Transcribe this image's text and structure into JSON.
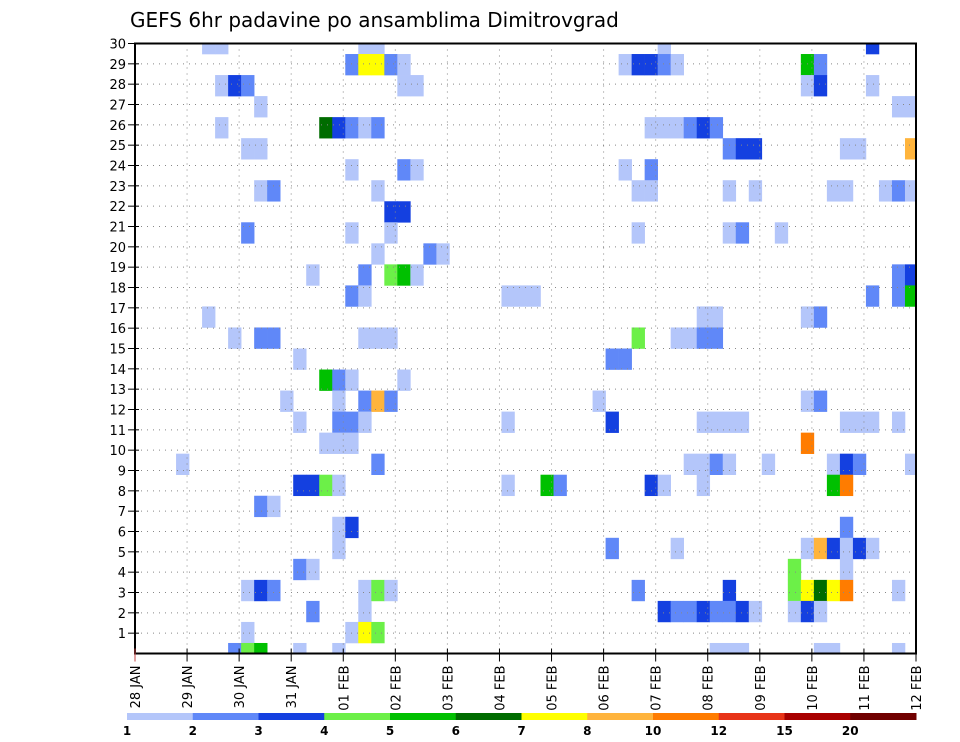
{
  "chart_data": {
    "type": "heatmap",
    "title": "GEFS 6hr padavine po ansamblima Dimitrovgrad",
    "xlabel": "",
    "ylabel": "",
    "x_ticks": [
      "28 JAN",
      "29 JAN",
      "30 JAN",
      "31 JAN",
      "01 FEB",
      "02 FEB",
      "03 FEB",
      "04 FEB",
      "05 FEB",
      "06 FEB",
      "07 FEB",
      "08 FEB",
      "09 FEB",
      "10 FEB",
      "11 FEB",
      "12 FEB"
    ],
    "y_ticks": [
      "1",
      "2",
      "3",
      "4",
      "5",
      "6",
      "7",
      "8",
      "9",
      "10",
      "11",
      "12",
      "13",
      "14",
      "15",
      "16",
      "17",
      "18",
      "19",
      "20",
      "21",
      "22",
      "23",
      "24",
      "25",
      "26",
      "27",
      "28",
      "29",
      "30"
    ],
    "ylim": [
      0,
      30
    ],
    "time_steps_per_day": 4,
    "n_time_steps": 60,
    "n_members": 30,
    "grid": true,
    "legend": {
      "placement": "bottom",
      "labels": [
        "1",
        "2",
        "3",
        "4",
        "5",
        "6",
        "7",
        "8",
        "10",
        "12",
        "15",
        "20"
      ],
      "colors": [
        "#b4c6fa",
        "#6088f8",
        "#1440e0",
        "#6cf048",
        "#00c000",
        "#006c00",
        "#ffff00",
        "#ffb43c",
        "#ff7c00",
        "#e83418",
        "#a80000",
        "#700000"
      ]
    },
    "cells_format": [
      "time_step_index",
      "member",
      "legend_bin_index"
    ],
    "cells": [
      [
        5,
        30,
        0
      ],
      [
        6,
        30,
        0
      ],
      [
        17,
        30,
        0
      ],
      [
        18,
        30,
        0
      ],
      [
        40,
        30,
        0
      ],
      [
        56,
        30,
        2
      ],
      [
        16,
        29,
        1
      ],
      [
        17,
        29,
        6
      ],
      [
        18,
        29,
        6
      ],
      [
        19,
        29,
        1
      ],
      [
        20,
        29,
        0
      ],
      [
        37,
        29,
        0
      ],
      [
        38,
        29,
        2
      ],
      [
        39,
        29,
        2
      ],
      [
        40,
        29,
        1
      ],
      [
        41,
        29,
        0
      ],
      [
        51,
        29,
        4
      ],
      [
        52,
        29,
        1
      ],
      [
        6,
        28,
        0
      ],
      [
        7,
        28,
        2
      ],
      [
        8,
        28,
        1
      ],
      [
        20,
        28,
        0
      ],
      [
        21,
        28,
        0
      ],
      [
        51,
        28,
        0
      ],
      [
        52,
        28,
        2
      ],
      [
        56,
        28,
        0
      ],
      [
        9,
        27,
        0
      ],
      [
        58,
        27,
        0
      ],
      [
        59,
        27,
        0
      ],
      [
        6,
        26,
        0
      ],
      [
        14,
        26,
        5
      ],
      [
        15,
        26,
        2
      ],
      [
        16,
        26,
        1
      ],
      [
        17,
        26,
        0
      ],
      [
        18,
        26,
        1
      ],
      [
        39,
        26,
        0
      ],
      [
        40,
        26,
        0
      ],
      [
        41,
        26,
        0
      ],
      [
        42,
        26,
        1
      ],
      [
        43,
        26,
        2
      ],
      [
        44,
        26,
        1
      ],
      [
        8,
        25,
        0
      ],
      [
        9,
        25,
        0
      ],
      [
        45,
        25,
        1
      ],
      [
        46,
        25,
        2
      ],
      [
        47,
        25,
        2
      ],
      [
        54,
        25,
        0
      ],
      [
        55,
        25,
        0
      ],
      [
        59,
        25,
        7
      ],
      [
        16,
        24,
        0
      ],
      [
        20,
        24,
        1
      ],
      [
        21,
        24,
        0
      ],
      [
        37,
        24,
        0
      ],
      [
        39,
        24,
        1
      ],
      [
        9,
        23,
        0
      ],
      [
        10,
        23,
        1
      ],
      [
        18,
        23,
        0
      ],
      [
        38,
        23,
        0
      ],
      [
        39,
        23,
        0
      ],
      [
        45,
        23,
        0
      ],
      [
        47,
        23,
        0
      ],
      [
        53,
        23,
        0
      ],
      [
        54,
        23,
        0
      ],
      [
        57,
        23,
        0
      ],
      [
        58,
        23,
        1
      ],
      [
        59,
        23,
        0
      ],
      [
        19,
        22,
        2
      ],
      [
        20,
        22,
        2
      ],
      [
        8,
        21,
        1
      ],
      [
        16,
        21,
        0
      ],
      [
        19,
        21,
        0
      ],
      [
        38,
        21,
        0
      ],
      [
        45,
        21,
        0
      ],
      [
        46,
        21,
        1
      ],
      [
        49,
        21,
        0
      ],
      [
        18,
        20,
        0
      ],
      [
        22,
        20,
        1
      ],
      [
        23,
        20,
        0
      ],
      [
        13,
        19,
        0
      ],
      [
        17,
        19,
        1
      ],
      [
        19,
        19,
        3
      ],
      [
        20,
        19,
        4
      ],
      [
        21,
        19,
        0
      ],
      [
        58,
        19,
        1
      ],
      [
        59,
        19,
        2
      ],
      [
        16,
        18,
        1
      ],
      [
        17,
        18,
        0
      ],
      [
        28,
        18,
        0
      ],
      [
        29,
        18,
        0
      ],
      [
        30,
        18,
        0
      ],
      [
        56,
        18,
        1
      ],
      [
        58,
        18,
        1
      ],
      [
        59,
        18,
        4
      ],
      [
        5,
        17,
        0
      ],
      [
        43,
        17,
        0
      ],
      [
        44,
        17,
        0
      ],
      [
        51,
        17,
        0
      ],
      [
        52,
        17,
        1
      ],
      [
        7,
        16,
        0
      ],
      [
        9,
        16,
        1
      ],
      [
        10,
        16,
        1
      ],
      [
        17,
        16,
        0
      ],
      [
        18,
        16,
        0
      ],
      [
        19,
        16,
        0
      ],
      [
        38,
        16,
        3
      ],
      [
        41,
        16,
        0
      ],
      [
        42,
        16,
        0
      ],
      [
        43,
        16,
        1
      ],
      [
        44,
        16,
        1
      ],
      [
        12,
        15,
        0
      ],
      [
        36,
        15,
        1
      ],
      [
        37,
        15,
        1
      ],
      [
        14,
        14,
        4
      ],
      [
        15,
        14,
        1
      ],
      [
        16,
        14,
        0
      ],
      [
        20,
        14,
        0
      ],
      [
        11,
        13,
        0
      ],
      [
        15,
        13,
        0
      ],
      [
        17,
        13,
        1
      ],
      [
        18,
        13,
        7
      ],
      [
        19,
        13,
        1
      ],
      [
        35,
        13,
        0
      ],
      [
        51,
        13,
        0
      ],
      [
        52,
        13,
        1
      ],
      [
        12,
        12,
        0
      ],
      [
        15,
        12,
        1
      ],
      [
        16,
        12,
        1
      ],
      [
        17,
        12,
        0
      ],
      [
        28,
        12,
        0
      ],
      [
        36,
        12,
        2
      ],
      [
        43,
        12,
        0
      ],
      [
        44,
        12,
        0
      ],
      [
        45,
        12,
        0
      ],
      [
        46,
        12,
        0
      ],
      [
        54,
        12,
        0
      ],
      [
        55,
        12,
        0
      ],
      [
        56,
        12,
        0
      ],
      [
        58,
        12,
        0
      ],
      [
        14,
        11,
        0
      ],
      [
        15,
        11,
        0
      ],
      [
        16,
        11,
        0
      ],
      [
        51,
        11,
        8
      ],
      [
        3,
        10,
        0
      ],
      [
        18,
        10,
        1
      ],
      [
        42,
        10,
        0
      ],
      [
        43,
        10,
        0
      ],
      [
        44,
        10,
        1
      ],
      [
        45,
        10,
        0
      ],
      [
        48,
        10,
        0
      ],
      [
        53,
        10,
        0
      ],
      [
        54,
        10,
        2
      ],
      [
        55,
        10,
        1
      ],
      [
        59,
        10,
        0
      ],
      [
        12,
        9,
        2
      ],
      [
        13,
        9,
        2
      ],
      [
        14,
        9,
        3
      ],
      [
        15,
        9,
        0
      ],
      [
        28,
        9,
        0
      ],
      [
        31,
        9,
        4
      ],
      [
        32,
        9,
        1
      ],
      [
        39,
        9,
        2
      ],
      [
        40,
        9,
        0
      ],
      [
        43,
        9,
        0
      ],
      [
        53,
        9,
        4
      ],
      [
        54,
        9,
        8
      ],
      [
        9,
        8,
        1
      ],
      [
        10,
        8,
        0
      ],
      [
        15,
        7,
        0
      ],
      [
        16,
        7,
        2
      ],
      [
        54,
        7,
        1
      ],
      [
        15,
        6,
        0
      ],
      [
        36,
        6,
        1
      ],
      [
        41,
        6,
        0
      ],
      [
        51,
        6,
        0
      ],
      [
        52,
        6,
        7
      ],
      [
        53,
        6,
        2
      ],
      [
        54,
        6,
        0
      ],
      [
        55,
        6,
        2
      ],
      [
        56,
        6,
        0
      ],
      [
        12,
        5,
        1
      ],
      [
        13,
        5,
        0
      ],
      [
        50,
        5,
        3
      ],
      [
        54,
        5,
        0
      ],
      [
        8,
        4,
        0
      ],
      [
        9,
        4,
        2
      ],
      [
        10,
        4,
        1
      ],
      [
        17,
        4,
        0
      ],
      [
        18,
        4,
        3
      ],
      [
        19,
        4,
        0
      ],
      [
        38,
        4,
        1
      ],
      [
        45,
        4,
        2
      ],
      [
        50,
        4,
        3
      ],
      [
        51,
        4,
        6
      ],
      [
        52,
        4,
        5
      ],
      [
        53,
        4,
        6
      ],
      [
        54,
        4,
        8
      ],
      [
        58,
        4,
        0
      ],
      [
        13,
        3,
        1
      ],
      [
        17,
        3,
        0
      ],
      [
        40,
        3,
        2
      ],
      [
        41,
        3,
        1
      ],
      [
        42,
        3,
        1
      ],
      [
        43,
        3,
        2
      ],
      [
        44,
        3,
        1
      ],
      [
        45,
        3,
        1
      ],
      [
        46,
        3,
        2
      ],
      [
        47,
        3,
        0
      ],
      [
        50,
        3,
        0
      ],
      [
        51,
        3,
        2
      ],
      [
        52,
        3,
        0
      ],
      [
        8,
        2,
        0
      ],
      [
        16,
        2,
        0
      ],
      [
        17,
        2,
        6
      ],
      [
        18,
        2,
        3
      ],
      [
        7,
        1,
        1
      ],
      [
        8,
        1,
        3
      ],
      [
        9,
        1,
        4
      ],
      [
        12,
        1,
        0
      ],
      [
        15,
        1,
        0
      ],
      [
        44,
        1,
        0
      ],
      [
        45,
        1,
        0
      ],
      [
        46,
        1,
        0
      ],
      [
        52,
        1,
        0
      ],
      [
        53,
        1,
        0
      ],
      [
        58,
        1,
        0
      ]
    ]
  }
}
